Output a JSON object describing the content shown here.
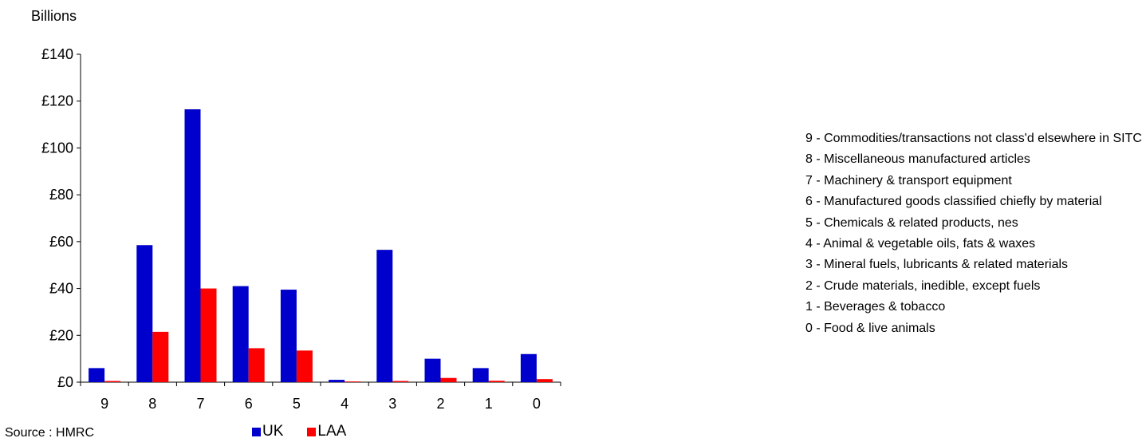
{
  "chart_data": {
    "type": "bar",
    "ylabel": "Billions",
    "ylim": [
      0,
      140
    ],
    "y_ticks": [
      "£0",
      "£20",
      "£40",
      "£60",
      "£80",
      "£100",
      "£120",
      "£140"
    ],
    "y_tick_values": [
      0,
      20,
      40,
      60,
      80,
      100,
      120,
      140
    ],
    "categories": [
      "9",
      "8",
      "7",
      "6",
      "5",
      "4",
      "3",
      "2",
      "1",
      "0"
    ],
    "series": [
      {
        "name": "UK",
        "color": "#0000cc",
        "values": [
          6,
          58.5,
          116.5,
          41,
          39.5,
          1,
          56.5,
          10,
          6,
          12
        ]
      },
      {
        "name": "LAA",
        "color": "#ff0000",
        "values": [
          0.5,
          21.5,
          40,
          14.5,
          13.5,
          0.3,
          0.5,
          1.8,
          0.6,
          1.3
        ]
      }
    ],
    "grid": false,
    "legend_position": "bottom"
  },
  "category_key": [
    "9 - Commodities/transactions not class'd elsewhere in SITC",
    "8 - Miscellaneous manufactured articles",
    "7 - Machinery & transport equipment",
    "6 - Manufactured goods classified chiefly by material",
    "5 - Chemicals & related products, nes",
    "4 - Animal & vegetable oils, fats & waxes",
    "3 - Mineral fuels, lubricants & related materials",
    "2 - Crude materials, inedible, except fuels",
    "1 - Beverages & tobacco",
    "0 - Food & live animals"
  ],
  "source": "Source : HMRC"
}
